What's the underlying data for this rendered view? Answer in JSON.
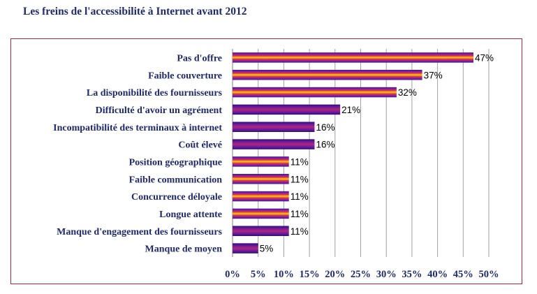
{
  "title": "Les freins de l'accessibilité à Internet avant 2012",
  "colors": {
    "frame": "#b4233a",
    "text": "#1f2a6b",
    "bar_gradient_a": [
      "#3a1a96",
      "#8a1fa0",
      "#e0304a",
      "#ffd200",
      "#e0304a",
      "#8a1fa0",
      "#3a1a96"
    ],
    "bar_gradient_b": [
      "#2c0f7e",
      "#6c1c9c",
      "#b3247a",
      "#6c1c9c",
      "#2c0f7e"
    ]
  },
  "chart_data": {
    "type": "bar",
    "orientation": "horizontal",
    "categories": [
      "Pas d'offre",
      "Faible couverture",
      "La disponibilité des fournisseurs",
      "Difficulté d'avoir un agrément",
      "Incompatibilité des terminaux à internet",
      "Coût élevé",
      "Position géographique",
      "Faible communication",
      "Concurrence déloyale",
      "Longue attente",
      "Manque d'engagement des fournisseurs",
      "Manque de moyen"
    ],
    "values": [
      47,
      37,
      32,
      21,
      16,
      16,
      11,
      11,
      11,
      11,
      11,
      5
    ],
    "value_labels": [
      "47%",
      "37%",
      "32%",
      "21%",
      "16%",
      "16%",
      "11%",
      "11%",
      "11%",
      "11%",
      "11%",
      "5%"
    ],
    "bar_styles": [
      "a",
      "a",
      "a",
      "b",
      "b",
      "b",
      "a",
      "a",
      "a",
      "a",
      "b",
      "b"
    ],
    "xlim": [
      0,
      50
    ],
    "xticks": [
      0,
      5,
      10,
      15,
      20,
      25,
      30,
      35,
      40,
      45,
      50
    ],
    "xtick_labels": [
      "0%",
      "5%",
      "10%",
      "15%",
      "20%",
      "25%",
      "30%",
      "35%",
      "40%",
      "45%",
      "50%"
    ],
    "grid": true,
    "xlabel": "",
    "ylabel": ""
  }
}
